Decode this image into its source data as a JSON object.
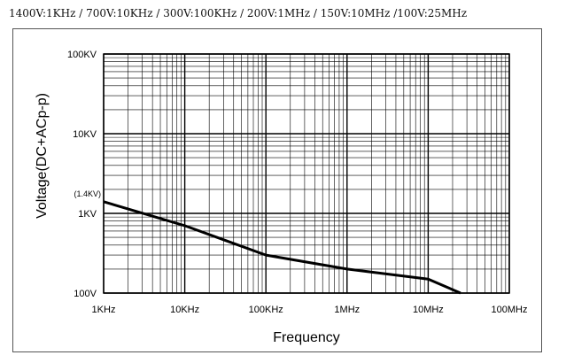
{
  "header": {
    "text": "1400V:1KHz / 700V:10KHz / 300V:100KHz / 200V:1MHz / 150V:10MHz /100V:25MHz"
  },
  "chart_data": {
    "type": "line",
    "title": "",
    "xlabel": "Frequency",
    "ylabel": "Voltage(DC+ACp-p)",
    "xscale": "log",
    "yscale": "log",
    "xlim_hz": [
      1000,
      100000000
    ],
    "ylim_v": [
      100,
      100000
    ],
    "grid": true,
    "x_ticks": [
      {
        "value": 1000,
        "label": "1KHz"
      },
      {
        "value": 10000,
        "label": "10KHz"
      },
      {
        "value": 100000,
        "label": "100KHz"
      },
      {
        "value": 1000000,
        "label": "1MHz"
      },
      {
        "value": 10000000,
        "label": "10MHz"
      },
      {
        "value": 100000000,
        "label": "100MHz"
      }
    ],
    "y_ticks": [
      {
        "value": 100,
        "label": "100V"
      },
      {
        "value": 1000,
        "label": "1KV"
      },
      {
        "value": 10000,
        "label": "10KV"
      },
      {
        "value": 100000,
        "label": "100KV"
      }
    ],
    "annotations": [
      {
        "text": "(1.4KV)",
        "x": 1000,
        "y": 1400
      }
    ],
    "series": [
      {
        "x": [
          1000,
          10000,
          100000,
          1000000,
          10000000,
          25000000
        ],
        "y": [
          1400,
          700,
          300,
          200,
          150,
          100
        ]
      }
    ]
  }
}
